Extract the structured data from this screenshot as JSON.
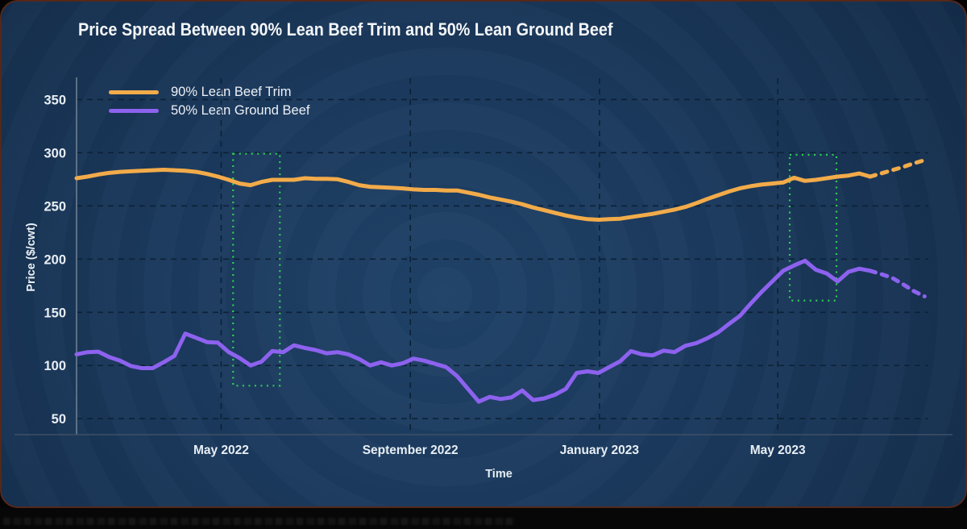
{
  "frame": {
    "card_border_color": "#55281a",
    "background_center_color": "#204268",
    "background_edge_color": "#0f253e",
    "bottom_bar_color": "#070707"
  },
  "legend": {
    "items": [
      {
        "label": "90% Lean Beef Trim",
        "color": "#F2AB4A"
      },
      {
        "label": "50% Lean Ground Beef",
        "color": "#8D62EF"
      }
    ]
  },
  "chart_data": {
    "type": "line",
    "title": "Price Spread Between 90% Lean Beef Trim and 50% Lean Ground Beef",
    "xlabel": "Time",
    "ylabel": "Price ($/cwt)",
    "grid": true,
    "legend_position": "top-left",
    "x_unit": "weekly",
    "xlim": [
      0,
      78.2
    ],
    "ylim": [
      35,
      370
    ],
    "y_ticks": [
      50,
      100,
      150,
      200,
      250,
      300,
      350
    ],
    "x_ticks": [
      {
        "label": "May 2022",
        "pos": 13.3
      },
      {
        "label": "September 2022",
        "pos": 30.7
      },
      {
        "label": "January 2023",
        "pos": 48.1
      },
      {
        "label": "May 2023",
        "pos": 64.5
      }
    ],
    "series": [
      {
        "name": "90% Lean Beef Trim",
        "color": "#F2AB4A",
        "style": "solid",
        "start_index": 0,
        "values": [
          276,
          277.5,
          279.5,
          281,
          282,
          282.5,
          283,
          283.5,
          284,
          283.5,
          283,
          282,
          280,
          277.5,
          274.5,
          271,
          269.5,
          272.5,
          274.5,
          274.5,
          274.5,
          276,
          275.5,
          275.5,
          275,
          272.5,
          269.5,
          268,
          267.5,
          267,
          266.5,
          265.5,
          265,
          265,
          264.5,
          264.5,
          262.5,
          260.5,
          258,
          256,
          254,
          251.5,
          248.5,
          246,
          243.5,
          241,
          239,
          237.5,
          237,
          237.5,
          238,
          239.5,
          241,
          242.5,
          244.5,
          246.5,
          249,
          252.5,
          256.5,
          260,
          263.5,
          266.5,
          268.5,
          270,
          271,
          272,
          276.5,
          273.5,
          274.5,
          276,
          277.5,
          278.5,
          280.5,
          277.5
        ]
      },
      {
        "name": "90% Lean Beef Trim projection",
        "color": "#F2AB4A",
        "style": "dotted",
        "start_index": 73,
        "values": [
          277.5,
          280.5,
          283.5,
          286.5,
          290,
          293
        ]
      },
      {
        "name": "50% Lean Ground Beef",
        "color": "#8D62EF",
        "style": "solid",
        "start_index": 0,
        "values": [
          110.5,
          112.5,
          113,
          108,
          104.5,
          99.5,
          97.5,
          97.5,
          103,
          109,
          130,
          126,
          122,
          121.5,
          112.5,
          107,
          100,
          103.5,
          113.5,
          112.5,
          119,
          116.5,
          114.5,
          111.5,
          112.5,
          110.5,
          106,
          100,
          103,
          100,
          102,
          106.5,
          104.5,
          101.5,
          98.5,
          90,
          78,
          66,
          70.5,
          68.5,
          70,
          76.5,
          67.5,
          69,
          72.5,
          78,
          93,
          94.5,
          93,
          98.5,
          104,
          113.5,
          110.5,
          109.5,
          114,
          112.5,
          118.5,
          121,
          125.5,
          131,
          139,
          146.5,
          158,
          169,
          179,
          189,
          194,
          198.5,
          190,
          186.5,
          179,
          188,
          191,
          189
        ]
      },
      {
        "name": "50% Lean Ground Beef projection",
        "color": "#8D62EF",
        "style": "dotted",
        "start_index": 73,
        "values": [
          189,
          186,
          182.5,
          176.5,
          170,
          165
        ]
      }
    ],
    "annotations": [
      {
        "type": "rect",
        "style": "dotted",
        "color": "#2FD050",
        "x1": 14.4,
        "x2": 18.7,
        "y_top": 299,
        "y_bottom": 81
      },
      {
        "type": "rect",
        "style": "dotted",
        "color": "#2FD050",
        "x1": 65.6,
        "x2": 69.9,
        "y_top": 298,
        "y_bottom": 161
      }
    ]
  }
}
